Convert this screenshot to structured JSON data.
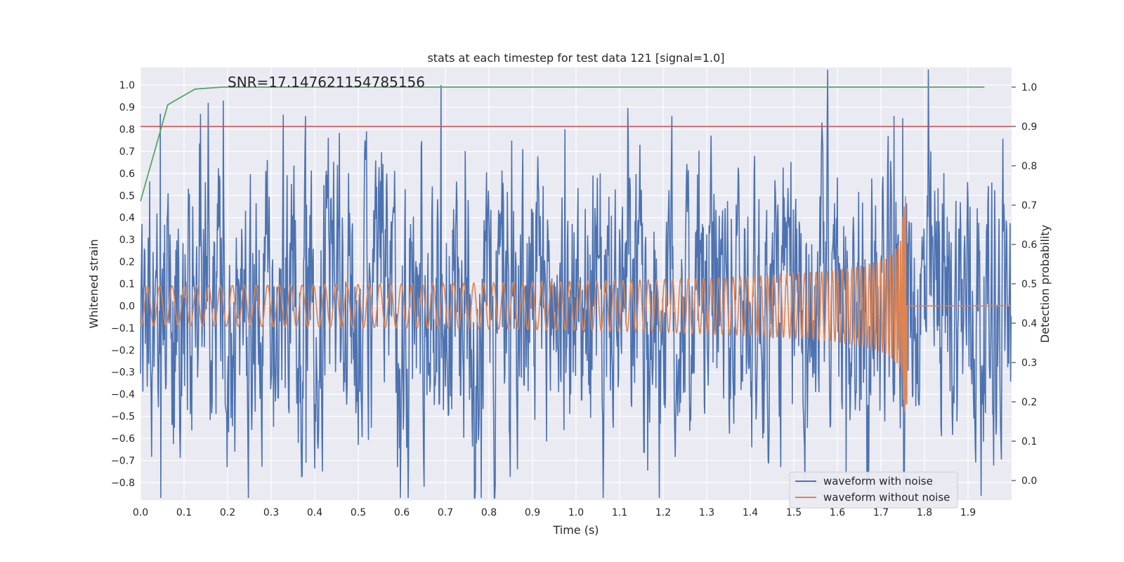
{
  "chart_data": {
    "type": "line",
    "title": "stats at each timestep for test data 121 [signal=1.0]",
    "xlabel": "Time (s)",
    "ylabel": "Whitened strain",
    "y2label": "Detection probability",
    "xlim": [
      0.0,
      2.0
    ],
    "ylim": [
      -0.88,
      1.08
    ],
    "y2lim": [
      -0.05,
      1.05
    ],
    "xticks": [
      "0.0",
      "0.1",
      "0.2",
      "0.3",
      "0.4",
      "0.5",
      "0.6",
      "0.7",
      "0.8",
      "0.9",
      "1.0",
      "1.1",
      "1.2",
      "1.3",
      "1.4",
      "1.5",
      "1.6",
      "1.7",
      "1.8",
      "1.9"
    ],
    "yticks": [
      "1.0",
      "0.9",
      "0.8",
      "0.7",
      "0.6",
      "0.5",
      "0.4",
      "0.3",
      "0.2",
      "0.1",
      "0.0",
      "−0.1",
      "−0.2",
      "−0.3",
      "−0.4",
      "−0.5",
      "−0.6",
      "−0.7",
      "−0.8"
    ],
    "y2ticks": [
      "1.0",
      "0.9",
      "0.8",
      "0.7",
      "0.6",
      "0.5",
      "0.4",
      "0.3",
      "0.2",
      "0.1",
      "0.0"
    ],
    "annotation": {
      "text": "SNR=17.147621154785156",
      "x": 0.2,
      "y": 1.0
    },
    "grid": true,
    "legend_placement": "lower-right",
    "series": [
      {
        "name": "waveform with noise",
        "color": "#4c72b0",
        "axis": "left",
        "noise_amplitude": 0.38,
        "notable_peaks": [
          {
            "x": 0.045,
            "y": 0.87
          },
          {
            "x": 0.155,
            "y": 0.92
          },
          {
            "x": 0.19,
            "y": 0.93
          },
          {
            "x": 0.69,
            "y": 1.0
          },
          {
            "x": 1.22,
            "y": 0.86
          },
          {
            "x": 1.73,
            "y": 0.86
          },
          {
            "x": 1.75,
            "y": 0.85
          },
          {
            "x": 1.62,
            "y": -0.76
          },
          {
            "x": 0.865,
            "y": -0.74
          },
          {
            "x": 1.47,
            "y": -0.73
          },
          {
            "x": 0.59,
            "y": -0.73
          },
          {
            "x": 0.38,
            "y": -0.71
          }
        ]
      },
      {
        "name": "waveform without noise",
        "color": "#dd8452",
        "axis": "left",
        "chirp_end": 1.76,
        "amplitude_start": 0.09,
        "amplitude_peak": 0.4,
        "frequency_start_hz": 35
      },
      {
        "name": "",
        "color": "#55a868",
        "axis": "right",
        "x": [
          0.0,
          0.0625,
          0.125,
          0.1875,
          0.25,
          0.5,
          1.0,
          1.5,
          1.9375
        ],
        "y": [
          0.71,
          0.955,
          0.995,
          1.0,
          1.0,
          1.0,
          1.0,
          1.0,
          1.0
        ]
      },
      {
        "name": "",
        "color": "#c44e52",
        "axis": "right",
        "type": "hline",
        "y": 0.9
      }
    ]
  }
}
